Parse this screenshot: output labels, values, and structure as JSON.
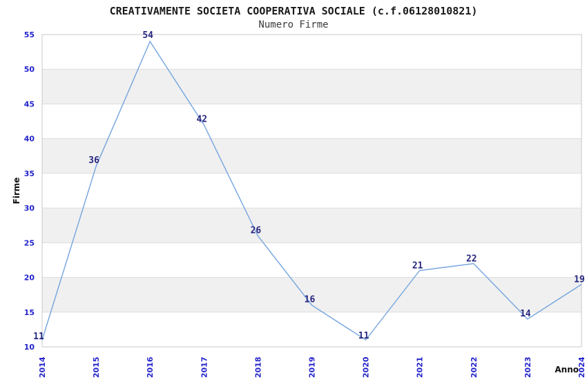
{
  "header": {
    "title": "CREATIVAMENTE SOCIETA COOPERATIVA SOCIALE (c.f.06128010821)",
    "subtitle": "Numero Firme"
  },
  "chart_data": {
    "type": "line",
    "title": "CREATIVAMENTE SOCIETA COOPERATIVA SOCIALE (c.f.06128010821)",
    "subtitle": "Numero Firme",
    "xlabel": "Anno",
    "ylabel": "Firme",
    "categories": [
      "2014",
      "2015",
      "2016",
      "2017",
      "2018",
      "2019",
      "2020",
      "2021",
      "2022",
      "2023",
      "2024"
    ],
    "series": [
      {
        "name": "Numero Firme",
        "values": [
          11,
          36,
          54,
          42,
          26,
          16,
          11,
          21,
          22,
          14,
          19
        ]
      }
    ],
    "data_labels_visible": true,
    "ylim": [
      10,
      55
    ],
    "ytick_step": 5,
    "yticks": [
      10,
      15,
      20,
      25,
      30,
      35,
      40,
      45,
      50,
      55
    ],
    "grid": "alternating horizontal gray bands every 5 units",
    "legend": "none",
    "x_tick_rotation": -90,
    "colors": {
      "line": "#74A4DE",
      "band_fill": "#F0F0F0",
      "gridline": "#DCDCDC",
      "frame": "#C8C8C8",
      "tick_label": "#2323CC",
      "data_label": "#262680",
      "title": "#1A1A1A",
      "subtitle": "#3A3A3A",
      "axis_title": "#111111",
      "background": "#FFFFFF"
    }
  }
}
